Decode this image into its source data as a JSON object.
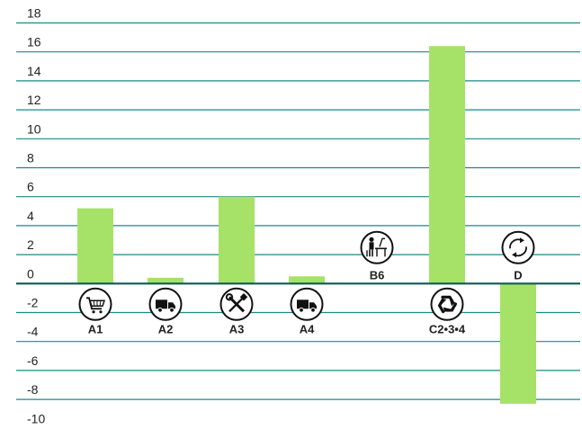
{
  "chart_data": {
    "type": "bar",
    "categories": [
      "A1",
      "A2",
      "A3",
      "A4",
      "B6",
      "C2-3-4",
      "D"
    ],
    "category_labels": [
      "A1",
      "A2",
      "A3",
      "A4",
      "B6",
      "C2•3•4",
      "D"
    ],
    "values": [
      5.2,
      0.4,
      6.0,
      0.5,
      0,
      16.4,
      -8.3
    ],
    "icons": [
      "shopping-cart-icon",
      "truck-icon",
      "wrench-screwdriver-icon",
      "truck-icon",
      "office-worker-icon",
      "recycle-icon",
      "circular-arrows-icon"
    ],
    "yticks": [
      18,
      16,
      14,
      12,
      10,
      8,
      6,
      4,
      2,
      0,
      -2,
      -4,
      -6,
      -8,
      -10
    ],
    "ylim": [
      -10,
      18
    ],
    "grid": true,
    "title": "",
    "xlabel": "",
    "ylabel": "",
    "colors": {
      "bar": "#a6e267",
      "grid": "#1a8a86",
      "zero_line": "#0b5a56",
      "icon_stroke": "#111111"
    }
  }
}
